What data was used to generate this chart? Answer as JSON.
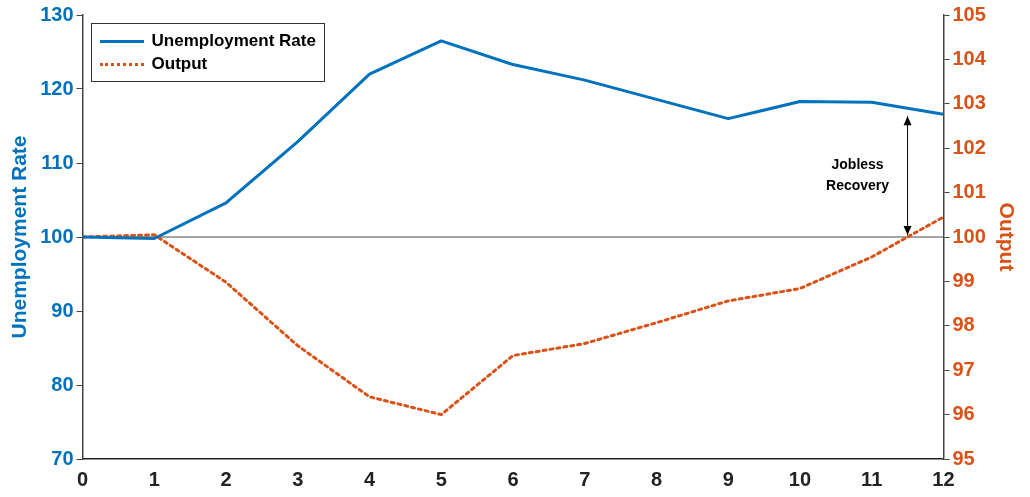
{
  "chart_data": {
    "type": "line",
    "xlabel": null,
    "ylabel": "Unemployment Rate",
    "y2label": "Output",
    "x": [
      0,
      1,
      2,
      3,
      4,
      5,
      6,
      7,
      8,
      9,
      10,
      11,
      12
    ],
    "series": [
      {
        "name": "Unemployment Rate",
        "color": "#0072bd",
        "line_style": "solid",
        "values": [
          100,
          99.8,
          104.6,
          112.9,
          122,
          126.5,
          123.3,
          121.2,
          118.6,
          116,
          118.3,
          118.2,
          116.6
        ]
      },
      {
        "name": "Output",
        "color": "#d95319",
        "line_style": "dotted",
        "axis": "y2",
        "values": [
          100,
          100.05,
          98.98,
          97.55,
          96.4,
          96,
          97.33,
          97.6,
          98.07,
          98.56,
          98.84,
          99.55,
          100.45
        ]
      }
    ],
    "xlim": [
      0,
      12
    ],
    "xticks": [
      0,
      1,
      2,
      3,
      4,
      5,
      6,
      7,
      8,
      9,
      10,
      11,
      12
    ],
    "ylim": [
      70,
      130
    ],
    "yticks": [
      70,
      80,
      90,
      100,
      110,
      120,
      130
    ],
    "y2lim": [
      95,
      105
    ],
    "y2ticks": [
      95,
      96,
      97,
      98,
      99,
      100,
      101,
      102,
      103,
      104,
      105
    ],
    "ref_lines": [
      {
        "axis": "y",
        "value": 100,
        "color": "#4d4d4d",
        "line_style": "solid"
      }
    ],
    "annotations": [
      "Jobless\nRecovery"
    ],
    "legend": "top left",
    "grid": false,
    "marker": "none"
  }
}
